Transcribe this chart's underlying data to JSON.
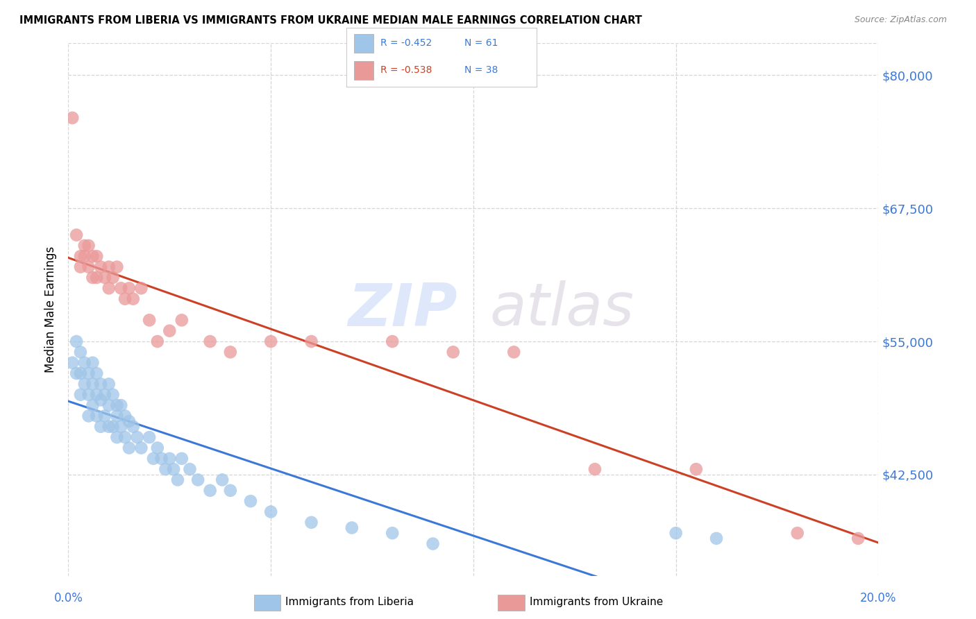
{
  "title": "IMMIGRANTS FROM LIBERIA VS IMMIGRANTS FROM UKRAINE MEDIAN MALE EARNINGS CORRELATION CHART",
  "source": "Source: ZipAtlas.com",
  "ylabel": "Median Male Earnings",
  "watermark_zip": "ZIP",
  "watermark_atlas": "atlas",
  "legend_blue_r": "R = -0.452",
  "legend_blue_n": "N = 61",
  "legend_pink_r": "R = -0.538",
  "legend_pink_n": "N = 38",
  "legend_label_blue": "Immigrants from Liberia",
  "legend_label_pink": "Immigrants from Ukraine",
  "xlim": [
    0.0,
    0.2
  ],
  "ylim": [
    33000,
    83000
  ],
  "yticks": [
    42500,
    55000,
    67500,
    80000
  ],
  "xticks": [
    0.0,
    0.05,
    0.1,
    0.15,
    0.2
  ],
  "yticklabels": [
    "$42,500",
    "$55,000",
    "$67,500",
    "$80,000"
  ],
  "color_blue": "#9fc5e8",
  "color_pink": "#ea9999",
  "color_blue_line": "#3c78d8",
  "color_pink_line": "#cc4125",
  "color_axis_text": "#3c78d8",
  "grid_color": "#cccccc",
  "background_color": "#ffffff",
  "liberia_x": [
    0.001,
    0.002,
    0.002,
    0.003,
    0.003,
    0.003,
    0.004,
    0.004,
    0.005,
    0.005,
    0.005,
    0.006,
    0.006,
    0.006,
    0.007,
    0.007,
    0.007,
    0.008,
    0.008,
    0.008,
    0.009,
    0.009,
    0.01,
    0.01,
    0.01,
    0.011,
    0.011,
    0.012,
    0.012,
    0.012,
    0.013,
    0.013,
    0.014,
    0.014,
    0.015,
    0.015,
    0.016,
    0.017,
    0.018,
    0.02,
    0.021,
    0.022,
    0.023,
    0.024,
    0.025,
    0.026,
    0.027,
    0.028,
    0.03,
    0.032,
    0.035,
    0.038,
    0.04,
    0.045,
    0.05,
    0.06,
    0.07,
    0.08,
    0.09,
    0.15,
    0.16
  ],
  "liberia_y": [
    53000,
    55000,
    52000,
    54000,
    52000,
    50000,
    53000,
    51000,
    52000,
    50000,
    48000,
    53000,
    51000,
    49000,
    52000,
    50000,
    48000,
    51000,
    49500,
    47000,
    50000,
    48000,
    51000,
    49000,
    47000,
    50000,
    47000,
    49000,
    48000,
    46000,
    49000,
    47000,
    48000,
    46000,
    47500,
    45000,
    47000,
    46000,
    45000,
    46000,
    44000,
    45000,
    44000,
    43000,
    44000,
    43000,
    42000,
    44000,
    43000,
    42000,
    41000,
    42000,
    41000,
    40000,
    39000,
    38000,
    37500,
    37000,
    36000,
    37000,
    36500
  ],
  "ukraine_x": [
    0.001,
    0.002,
    0.003,
    0.003,
    0.004,
    0.004,
    0.005,
    0.005,
    0.006,
    0.006,
    0.007,
    0.007,
    0.008,
    0.009,
    0.01,
    0.01,
    0.011,
    0.012,
    0.013,
    0.014,
    0.015,
    0.016,
    0.018,
    0.02,
    0.022,
    0.025,
    0.028,
    0.035,
    0.04,
    0.05,
    0.06,
    0.08,
    0.095,
    0.11,
    0.13,
    0.155,
    0.18,
    0.195
  ],
  "ukraine_y": [
    76000,
    65000,
    63000,
    62000,
    64000,
    63000,
    62000,
    64000,
    63000,
    61000,
    63000,
    61000,
    62000,
    61000,
    62000,
    60000,
    61000,
    62000,
    60000,
    59000,
    60000,
    59000,
    60000,
    57000,
    55000,
    56000,
    57000,
    55000,
    54000,
    55000,
    55000,
    55000,
    54000,
    54000,
    43000,
    43000,
    37000,
    36500
  ]
}
